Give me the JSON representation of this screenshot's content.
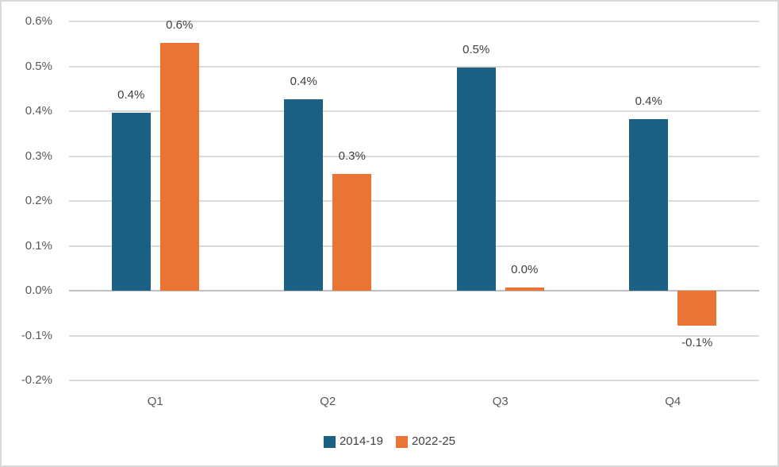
{
  "chart_data": {
    "type": "bar",
    "title": "",
    "xlabel": "",
    "ylabel": "",
    "categories": [
      "Q1",
      "Q2",
      "Q3",
      "Q4"
    ],
    "series": [
      {
        "name": "2014-19",
        "color": "#1A6183",
        "values": [
          0.397,
          0.427,
          0.497,
          0.383
        ],
        "data_labels": [
          "0.4%",
          "0.4%",
          "0.5%",
          "0.4%"
        ]
      },
      {
        "name": "2022-25",
        "color": "#EA7433",
        "values": [
          0.553,
          0.26,
          0.007,
          -0.078
        ],
        "data_labels": [
          "0.6%",
          "0.3%",
          "0.0%",
          "-0.1%"
        ]
      }
    ],
    "ylim": [
      -0.2,
      0.6
    ],
    "ytick_step": 0.1,
    "ytick_labels": [
      "0.6%",
      "0.5%",
      "0.4%",
      "0.3%",
      "0.2%",
      "0.1%",
      "0.0%",
      "-0.1%",
      "-0.2%"
    ],
    "grid": true,
    "legend_position": "bottom"
  },
  "styles": {
    "background": "#FFFFFF",
    "frame_border_color": "#D9D9D9",
    "gridline_color": "#DADADA",
    "axis_line_color": "#C0C0C0",
    "tick_label_color": "#595959",
    "category_label_color": "#595959",
    "data_label_color": "#404040",
    "legend_text_color": "#3F3F3F"
  }
}
